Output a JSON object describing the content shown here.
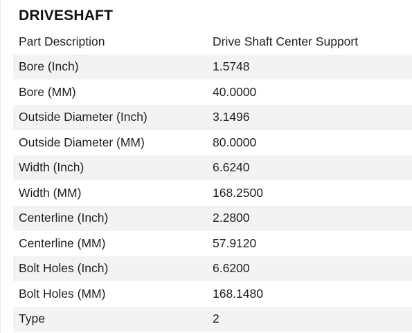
{
  "section": {
    "title": "DRIVESHAFT"
  },
  "specs": [
    {
      "label": "Part Description",
      "value": "Drive Shaft Center Support"
    },
    {
      "label": "Bore (Inch)",
      "value": "1.5748"
    },
    {
      "label": "Bore (MM)",
      "value": "40.0000"
    },
    {
      "label": "Outside Diameter (Inch)",
      "value": "3.1496"
    },
    {
      "label": "Outside Diameter (MM)",
      "value": "80.0000"
    },
    {
      "label": "Width (Inch)",
      "value": "6.6240"
    },
    {
      "label": "Width (MM)",
      "value": "168.2500"
    },
    {
      "label": "Centerline (Inch)",
      "value": "2.2800"
    },
    {
      "label": "Centerline (MM)",
      "value": "57.9120"
    },
    {
      "label": "Bolt Holes (Inch)",
      "value": "6.6200"
    },
    {
      "label": "Bolt Holes (MM)",
      "value": "168.1480"
    },
    {
      "label": "Type",
      "value": "2"
    }
  ]
}
